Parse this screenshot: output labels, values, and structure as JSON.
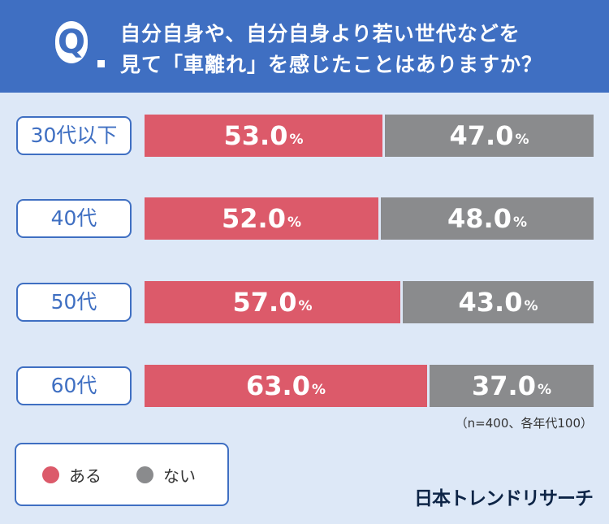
{
  "header": {
    "q_letter": "Q",
    "question_line1": "自分自身や、自分自身より若い世代などを",
    "question_line2": "見て「車離れ」を感じたことはありますか？"
  },
  "colors": {
    "header_bg": "#3f6fc2",
    "aru": "#dc5a6a",
    "nai": "#8a8b8d",
    "background": "#dde8f7"
  },
  "chart_data": {
    "type": "bar",
    "stacked": true,
    "orientation": "horizontal",
    "categories": [
      "30代以下",
      "40代",
      "50代",
      "60代"
    ],
    "series": [
      {
        "name": "ある",
        "values": [
          53.0,
          52.0,
          57.0,
          63.0
        ],
        "color": "#dc5a6a"
      },
      {
        "name": "ない",
        "values": [
          47.0,
          48.0,
          43.0,
          37.0
        ],
        "color": "#8a8b8d"
      }
    ],
    "value_labels": {
      "ある": [
        "53.0",
        "52.0",
        "57.0",
        "63.0"
      ],
      "ない": [
        "47.0",
        "48.0",
        "43.0",
        "37.0"
      ]
    },
    "unit": "%",
    "xlim": [
      0,
      100
    ],
    "legend_placement": "bottom-left"
  },
  "note": "（n=400、各年代100）",
  "legend": {
    "items": [
      {
        "label": "ある",
        "color": "#dc5a6a"
      },
      {
        "label": "ない",
        "color": "#8a8b8d"
      }
    ]
  },
  "brand": "日本トレンドリサーチ"
}
